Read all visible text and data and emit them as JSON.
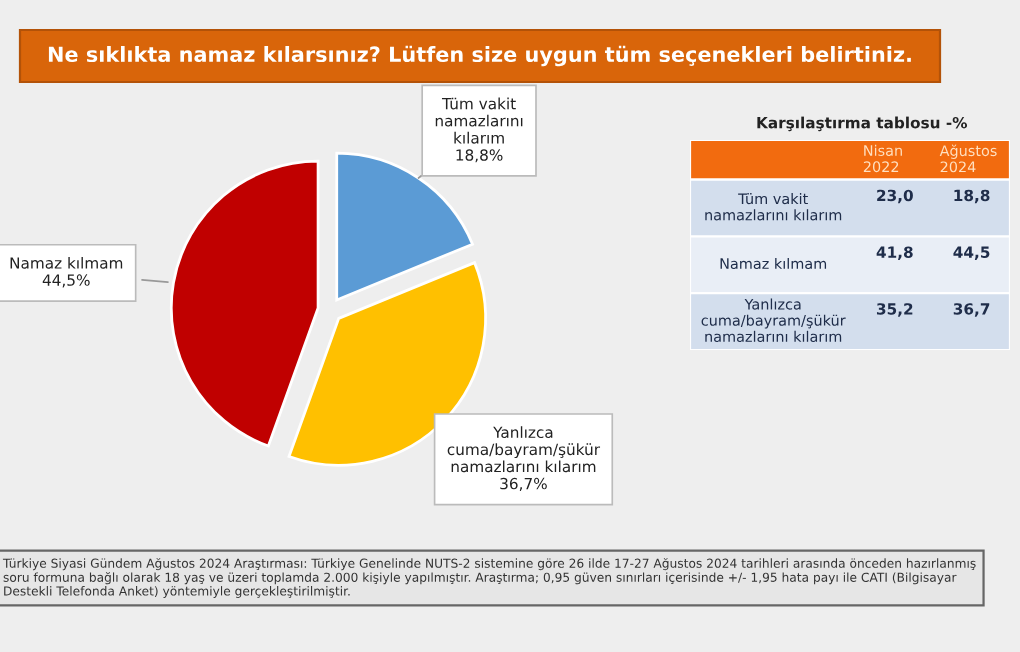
{
  "chart_data": [
    {
      "type": "pie",
      "title": "Ne sıklıkta namaz kılarsınız? Lütfen size uygun tüm seçenekleri belirtiniz.",
      "categories": [
        "Tüm vakit\nnamazlarını\nkılarım",
        "Yanlızca\ncuma/bayram/şükür\nnamazlarını kılarım",
        "Namaz kılmam"
      ],
      "values": [
        18.8,
        36.7,
        44.5
      ],
      "value_labels": [
        "18,8%",
        "36,7%",
        "44,5%"
      ],
      "colors": [
        "#5b9bd5",
        "#ffc000",
        "#c00000"
      ],
      "annotations": [
        "Türkiye Siyasi Gündem Ağustos 2024 Araştırması: Türkiye Genelinde NUTS-2 sistemine göre 26 ilde 17-27 Ağustos 2024 tarihleri arasında önceden hazırlanmış soru formuna bağlı olarak 18 yaş ve üzeri toplamda 2.000 kişiyle yapılmıştır. Araştırma; 0,95 güven sınırları içerisinde +/- 1,95 hata payı ile CATI (Bilgisayar Destekli Telefonda Anket) yöntemiyle gerçekleştirilmiştir."
      ]
    },
    {
      "type": "other",
      "title": "Karşılaştırma tablosu -%",
      "categories": [
        "Nisan\n2022",
        "Ağustos\n2024"
      ],
      "y_categories": [
        "Tüm vakit\nnamazlarını kılarım",
        "Namaz kılmam",
        "Yanlızca\ncuma/bayram/şükür\nnamazlarını kılarım"
      ],
      "cell_labels": [
        [
          "23,0",
          "18,8"
        ],
        [
          "41,8",
          "44,5"
        ],
        [
          "35,2",
          "36,7"
        ]
      ]
    }
  ]
}
